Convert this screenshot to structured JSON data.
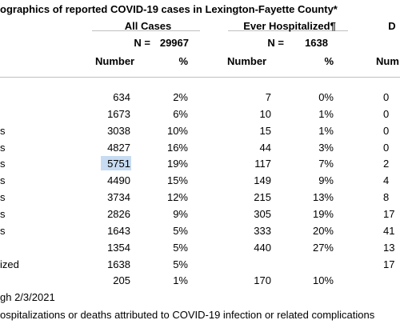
{
  "table": {
    "title": "ographics of reported COVID-19 cases in Lexington-Fayette County*",
    "groups": [
      "All Cases",
      "Ever Hospitalized¶",
      "D"
    ],
    "n_row": [
      "N =",
      "29967",
      "N =",
      "1638"
    ],
    "header": [
      "Number",
      "%",
      "Number",
      "%",
      "Num"
    ],
    "rows": [
      [
        null,
        "634",
        "2%",
        "7",
        "0%",
        "0"
      ],
      [
        null,
        "1673",
        "6%",
        "10",
        "1%",
        "0"
      ],
      [
        "s",
        "3038",
        "10%",
        "15",
        "1%",
        "0"
      ],
      [
        "s",
        "4827",
        "16%",
        "44",
        "3%",
        "0"
      ],
      [
        "s",
        "5751",
        "19%",
        "117",
        "7%",
        "2"
      ],
      [
        "s",
        "4490",
        "15%",
        "149",
        "9%",
        "4"
      ],
      [
        "s",
        "3734",
        "12%",
        "215",
        "13%",
        "8"
      ],
      [
        "s",
        "2826",
        "9%",
        "305",
        "19%",
        "17"
      ],
      [
        "s",
        "1643",
        "5%",
        "333",
        "20%",
        "41"
      ],
      [
        null,
        "1354",
        "5%",
        "440",
        "27%",
        "13"
      ],
      [
        "ized",
        "1638",
        "5%",
        null,
        null,
        "17"
      ],
      [
        null,
        "205",
        "1%",
        "170",
        "10%",
        null
      ]
    ],
    "footnotes": [
      "gh 2/3/2021",
      "ospitalizations or deaths attributed to COVID-19 infection or related complications"
    ]
  }
}
